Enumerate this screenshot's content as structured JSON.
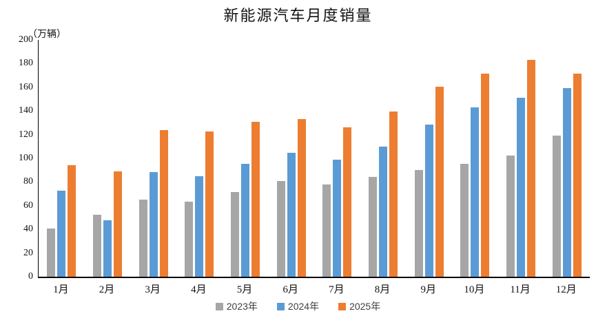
{
  "chart_data": {
    "type": "bar",
    "title": "新能源汽车月度销量",
    "unit_label": "（万辆）",
    "unit": "万辆",
    "categories": [
      "1月",
      "2月",
      "3月",
      "4月",
      "5月",
      "6月",
      "7月",
      "8月",
      "9月",
      "10月",
      "11月",
      "12月"
    ],
    "series": [
      {
        "name": "2023年",
        "color": "#A6A6A6",
        "values": [
          40.8,
          52.5,
          65.3,
          63.6,
          71.7,
          80.6,
          78.0,
          84.6,
          90.4,
          95.6,
          102.6,
          119.1
        ]
      },
      {
        "name": "2024年",
        "color": "#5B9BD5",
        "values": [
          72.9,
          47.7,
          88.3,
          85.0,
          95.5,
          104.9,
          99.1,
          110.0,
          128.7,
          143.0,
          151.2,
          159.6
        ]
      },
      {
        "name": "2025年",
        "color": "#ED7D31",
        "values": [
          94.4,
          89.2,
          123.7,
          122.6,
          130.7,
          132.9,
          126.2,
          139.5,
          160.6,
          171.5,
          183.0,
          171.5
        ]
      }
    ],
    "xlabel": "",
    "ylabel": "万辆",
    "ylim": [
      0,
      200
    ],
    "yticks": [
      0,
      20,
      40,
      60,
      80,
      100,
      120,
      140,
      160,
      180,
      200
    ],
    "grid": false,
    "legend_position": "bottom",
    "axis_color": "#000000"
  }
}
